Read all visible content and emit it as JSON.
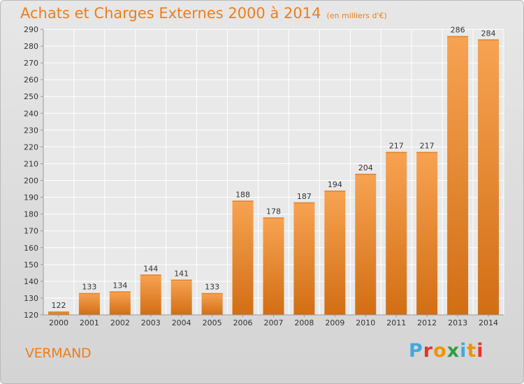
{
  "chart_data": {
    "type": "bar",
    "title": "Achats et Charges Externes 2000 à 2014",
    "subtitle": "(en milliers d'€)",
    "categories": [
      "2000",
      "2001",
      "2002",
      "2003",
      "2004",
      "2005",
      "2006",
      "2007",
      "2008",
      "2009",
      "2010",
      "2011",
      "2012",
      "2013",
      "2014"
    ],
    "values": [
      122,
      133,
      134,
      144,
      141,
      133,
      188,
      178,
      187,
      194,
      204,
      217,
      217,
      286,
      284
    ],
    "ylim": [
      120,
      290
    ],
    "yticks": [
      120,
      130,
      140,
      150,
      160,
      170,
      180,
      190,
      200,
      210,
      220,
      230,
      240,
      250,
      260,
      270,
      280,
      290
    ],
    "grid": true,
    "xlabel": "",
    "ylabel": ""
  },
  "footer": {
    "commune": "VERMAND",
    "logo": "Proxiti"
  },
  "colors": {
    "accent": "#ef7d1a",
    "bar_light": "#f7a352",
    "bar_dark": "#d26e14",
    "logo_letters": [
      "#3fa9e0",
      "#e6332a",
      "#f39200",
      "#2e9e44",
      "#3fa9e0",
      "#f39200",
      "#e6332a"
    ]
  }
}
